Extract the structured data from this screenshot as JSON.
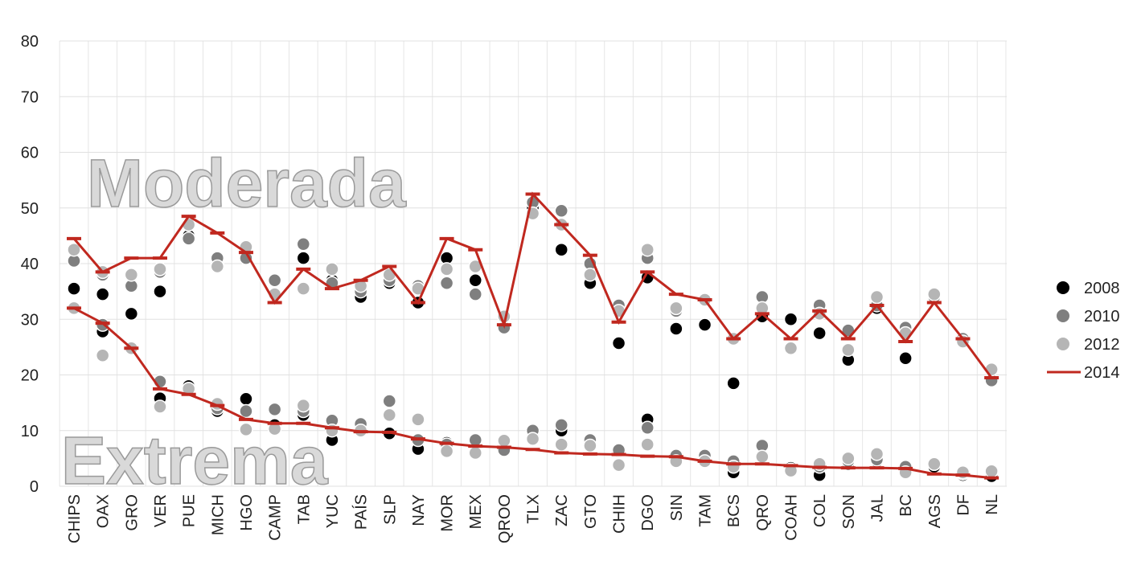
{
  "chart_data": {
    "type": "dot-line",
    "categories": [
      "CHIPS",
      "OAX",
      "GRO",
      "VER",
      "PUE",
      "MICH",
      "HGO",
      "CAMP",
      "TAB",
      "YUC",
      "PAÍS",
      "SLP",
      "NAY",
      "MOR",
      "MEX",
      "QROO",
      "TLX",
      "ZAC",
      "GTO",
      "CHIH",
      "DGO",
      "SIN",
      "TAM",
      "BCS",
      "QRO",
      "COAH",
      "COL",
      "SON",
      "JAL",
      "BC",
      "AGS",
      "DF",
      "NL"
    ],
    "series": [
      {
        "name": "2008",
        "color": "#000000",
        "mark": "dot"
      },
      {
        "name": "2010",
        "color": "#7f7f7f",
        "mark": "dot"
      },
      {
        "name": "2012",
        "color": "#b5b5b5",
        "mark": "dot"
      },
      {
        "name": "2014",
        "color": "#c0281f",
        "mark": "line"
      }
    ],
    "groups": [
      {
        "label": "Moderada",
        "values": [
          [
            35.5,
            34.5,
            31,
            35,
            45,
            40,
            41,
            34.5,
            41,
            37,
            34,
            36.5,
            33,
            41,
            37,
            28.5,
            50,
            42.5,
            36.5,
            25.7,
            37.5,
            28.3,
            29,
            18.5,
            30.5,
            30,
            27.5,
            22.7,
            32,
            23,
            34,
            26,
            19
          ],
          [
            40.5,
            38,
            36,
            38.5,
            44.5,
            41,
            41,
            37,
            43.5,
            36.5,
            35,
            37,
            36,
            36.5,
            34.5,
            28.5,
            51,
            49.5,
            40,
            32.5,
            41,
            31.5,
            33.5,
            26.5,
            34,
            25,
            32.5,
            28,
            32.5,
            28.5,
            34,
            26.5,
            19
          ],
          [
            42.5,
            38.5,
            38,
            39,
            47,
            39.5,
            43,
            34.5,
            35.5,
            39,
            36,
            38,
            35.5,
            39,
            39.5,
            30.5,
            49,
            47,
            38,
            31.5,
            42.5,
            32,
            33.5,
            26.5,
            32,
            24.8,
            31,
            24.5,
            34,
            27.5,
            34.5,
            26,
            21
          ],
          [
            44.5,
            38.5,
            41,
            41,
            48.5,
            45.5,
            42,
            33,
            39,
            35.5,
            37,
            39.5,
            33,
            44.5,
            42.5,
            29,
            52.5,
            47,
            41.5,
            29.5,
            38.5,
            34.5,
            33.5,
            26.5,
            31,
            26.5,
            31.5,
            26.5,
            32.5,
            26,
            33,
            26.5,
            19.5
          ]
        ]
      },
      {
        "label": "Extrema",
        "values": [
          [
            32,
            27.8,
            24.8,
            15.8,
            18,
            13.5,
            15.7,
            11,
            12.8,
            8.3,
            10,
            9.5,
            6.7,
            7.8,
            7.5,
            6.7,
            9,
            10,
            7.5,
            6.3,
            12,
            5,
            5.5,
            2.5,
            5.5,
            3.3,
            2,
            4,
            4.5,
            3.5,
            3.5,
            2,
            1.8
          ],
          [
            32,
            29,
            24.8,
            18.8,
            17.5,
            14,
            13.5,
            13.8,
            13.5,
            11.8,
            11.2,
            15.3,
            8.3,
            7.5,
            8.3,
            6.5,
            10,
            11,
            8.3,
            6.5,
            10.5,
            5.5,
            5.5,
            4.5,
            7.3,
            3,
            3.5,
            4.5,
            4.8,
            3.5,
            4,
            2.3,
            2.7
          ],
          [
            32,
            23.5,
            24.8,
            14.3,
            17.5,
            14.8,
            10.2,
            10.3,
            14.5,
            10,
            10,
            12.8,
            12,
            6.3,
            6,
            8.2,
            8.5,
            7.5,
            7.3,
            3.8,
            7.5,
            4.5,
            4.5,
            3.5,
            5.3,
            2.8,
            4,
            5,
            5.8,
            2.5,
            4,
            2.5,
            2.7
          ],
          [
            32,
            29.3,
            24.8,
            17.5,
            16.5,
            14.5,
            12,
            11.3,
            11.3,
            10.5,
            9.8,
            9.7,
            8.5,
            7.7,
            7.2,
            7,
            6.6,
            6,
            5.8,
            5.7,
            5.4,
            5.3,
            4.5,
            4,
            4,
            3.7,
            3.4,
            3.3,
            3.3,
            3.2,
            2.2,
            2,
            1.5
          ]
        ]
      }
    ],
    "ylim": [
      0,
      80
    ],
    "yticks": [
      0,
      10,
      20,
      30,
      40,
      50,
      60,
      70,
      80
    ],
    "grid": true
  }
}
